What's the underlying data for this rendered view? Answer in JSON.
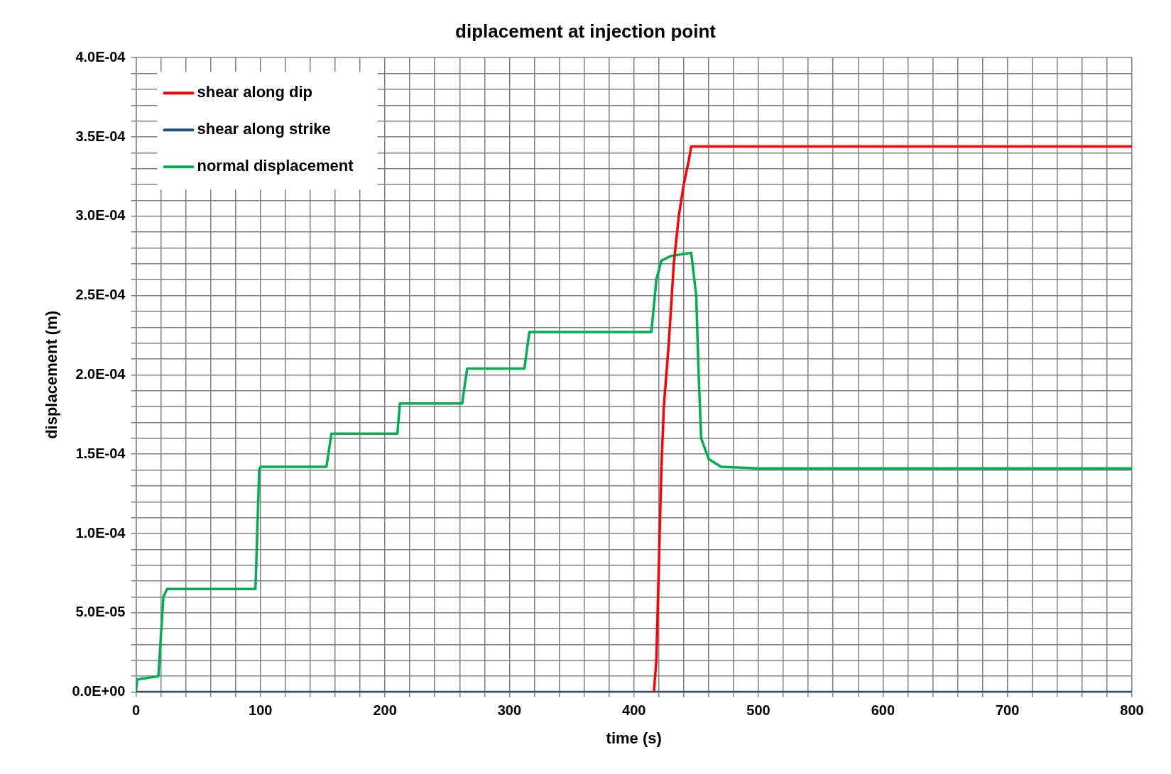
{
  "chart_data": {
    "type": "line",
    "title": "diplacement at injection point",
    "xlabel": "time (s)",
    "ylabel": "displacement (m)",
    "xlim": [
      0,
      800
    ],
    "ylim": [
      0,
      0.0004
    ],
    "xticks": [
      0,
      {
        "value": 20,
        "label": null
      },
      {
        "value": 40,
        "label": null
      },
      {
        "value": 60,
        "label": null
      },
      {
        "value": 80,
        "label": null
      },
      100,
      {
        "value": 120,
        "label": null
      },
      {
        "value": 140,
        "label": null
      },
      {
        "value": 160,
        "label": null
      },
      {
        "value": 180,
        "label": null
      },
      200,
      {
        "value": 220,
        "label": null
      },
      {
        "value": 240,
        "label": null
      },
      {
        "value": 260,
        "label": null
      },
      {
        "value": 280,
        "label": null
      },
      300,
      {
        "value": 320,
        "label": null
      },
      {
        "value": 340,
        "label": null
      },
      {
        "value": 360,
        "label": null
      },
      {
        "value": 380,
        "label": null
      },
      400,
      {
        "value": 420,
        "label": null
      },
      {
        "value": 440,
        "label": null
      },
      {
        "value": 460,
        "label": null
      },
      {
        "value": 480,
        "label": null
      },
      500,
      {
        "value": 520,
        "label": null
      },
      {
        "value": 540,
        "label": null
      },
      {
        "value": 560,
        "label": null
      },
      {
        "value": 580,
        "label": null
      },
      600,
      {
        "value": 620,
        "label": null
      },
      {
        "value": 640,
        "label": null
      },
      {
        "value": 660,
        "label": null
      },
      {
        "value": 680,
        "label": null
      },
      700,
      {
        "value": 720,
        "label": null
      },
      {
        "value": 740,
        "label": null
      },
      {
        "value": 760,
        "label": null
      },
      {
        "value": 780,
        "label": null
      },
      800
    ],
    "yticks": [
      {
        "value": 0,
        "label": "0.0E+00"
      },
      {
        "value": 1e-05,
        "label": null
      },
      {
        "value": 2e-05,
        "label": null
      },
      {
        "value": 3e-05,
        "label": null
      },
      {
        "value": 4e-05,
        "label": null
      },
      {
        "value": 5e-05,
        "label": "5.0E-05"
      },
      {
        "value": 6e-05,
        "label": null
      },
      {
        "value": 7e-05,
        "label": null
      },
      {
        "value": 8e-05,
        "label": null
      },
      {
        "value": 9e-05,
        "label": null
      },
      {
        "value": 0.0001,
        "label": "1.0E-04"
      },
      {
        "value": 0.00011,
        "label": null
      },
      {
        "value": 0.00012,
        "label": null
      },
      {
        "value": 0.00013,
        "label": null
      },
      {
        "value": 0.00014,
        "label": null
      },
      {
        "value": 0.00015,
        "label": "1.5E-04"
      },
      {
        "value": 0.00016,
        "label": null
      },
      {
        "value": 0.00017,
        "label": null
      },
      {
        "value": 0.00018,
        "label": null
      },
      {
        "value": 0.00019,
        "label": null
      },
      {
        "value": 0.0002,
        "label": "2.0E-04"
      },
      {
        "value": 0.00021,
        "label": null
      },
      {
        "value": 0.00022,
        "label": null
      },
      {
        "value": 0.00023,
        "label": null
      },
      {
        "value": 0.00024,
        "label": null
      },
      {
        "value": 0.00025,
        "label": "2.5E-04"
      },
      {
        "value": 0.00026,
        "label": null
      },
      {
        "value": 0.00027,
        "label": null
      },
      {
        "value": 0.00028,
        "label": null
      },
      {
        "value": 0.00029,
        "label": null
      },
      {
        "value": 0.0003,
        "label": "3.0E-04"
      },
      {
        "value": 0.00031,
        "label": null
      },
      {
        "value": 0.00032,
        "label": null
      },
      {
        "value": 0.00033,
        "label": null
      },
      {
        "value": 0.00034,
        "label": null
      },
      {
        "value": 0.00035,
        "label": "3.5E-04"
      },
      {
        "value": 0.00036,
        "label": null
      },
      {
        "value": 0.00037,
        "label": null
      },
      {
        "value": 0.00038,
        "label": null
      },
      {
        "value": 0.00039,
        "label": null
      },
      {
        "value": 0.0004,
        "label": "4.0E-04"
      }
    ],
    "grid": true,
    "legend": "top left",
    "marker": "none",
    "line_style": "solid",
    "series": [
      {
        "name": "shear along dip",
        "color": "#ff0000",
        "x": [
          416,
          418,
          420,
          422,
          424,
          428,
          432,
          436,
          440,
          444,
          446,
          800
        ],
        "values": [
          0,
          2e-05,
          8e-05,
          0.00014,
          0.00018,
          0.00022,
          0.00027,
          0.0003,
          0.00032,
          0.000335,
          0.000344,
          0.000344
        ]
      },
      {
        "name": "shear along strike",
        "color": "#1f4e8c",
        "x": [
          0,
          800
        ],
        "values": [
          0,
          0
        ]
      },
      {
        "name": "normal displacement",
        "color": "#00b050",
        "x": [
          0,
          1,
          18,
          22,
          25,
          96,
          99,
          100,
          153,
          157,
          210,
          212,
          262,
          266,
          312,
          316,
          414,
          418,
          422,
          430,
          446,
          450,
          452,
          454,
          460,
          470,
          500,
          800
        ],
        "values": [
          0,
          8e-06,
          1e-05,
          6e-05,
          6.5e-05,
          6.5e-05,
          0.00014,
          0.000142,
          0.000142,
          0.000163,
          0.000163,
          0.000182,
          0.000182,
          0.000204,
          0.000204,
          0.000227,
          0.000227,
          0.00026,
          0.000272,
          0.000275,
          0.000277,
          0.00025,
          0.0002,
          0.00016,
          0.000147,
          0.000142,
          0.000141,
          0.000141
        ]
      }
    ]
  }
}
